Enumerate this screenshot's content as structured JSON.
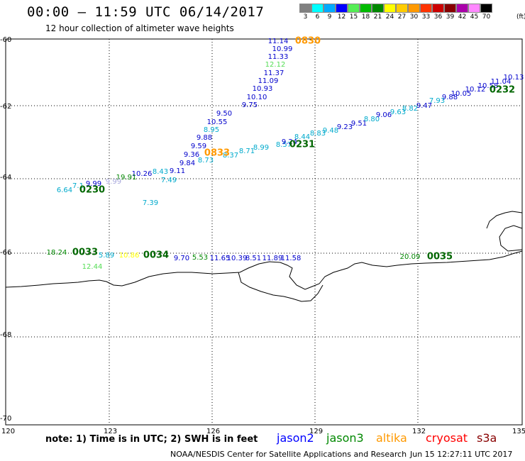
{
  "header": {
    "title": "00:00 – 11:59 UTC 06/14/2017",
    "subtitle": "12 hour collection of altimeter wave heights"
  },
  "scale": {
    "labels": [
      "3",
      "6",
      "9",
      "12",
      "15",
      "18",
      "21",
      "24",
      "27",
      "30",
      "33",
      "36",
      "39",
      "42",
      "45",
      "70"
    ],
    "unit": "(ft)",
    "colors": [
      "#808080",
      "#00ffff",
      "#00aaff",
      "#0000ff",
      "#55ee55",
      "#00bb00",
      "#008800",
      "#ffff00",
      "#ffcc00",
      "#ff9900",
      "#ff3300",
      "#cc0000",
      "#880000",
      "#aa00aa",
      "#ff88ff",
      "#000000"
    ]
  },
  "axes": {
    "lon_ticks": [
      "120",
      "123",
      "126",
      "129",
      "132",
      "135"
    ],
    "lat_ticks": [
      "-60",
      "-62",
      "-64",
      "-66",
      "-68",
      "-70"
    ]
  },
  "passes": [
    {
      "label": "0830",
      "color": "#ff9900"
    },
    {
      "label": "0230",
      "color": "#006600"
    },
    {
      "label": "0231",
      "color": "#006600"
    },
    {
      "label": "0232",
      "color": "#006600"
    },
    {
      "label": "0033",
      "color": "#006600"
    },
    {
      "label": "0034",
      "color": "#006600"
    },
    {
      "label": "0035",
      "color": "#006600"
    },
    {
      "label": "0833",
      "color": "#ff9900"
    }
  ],
  "observations": [
    {
      "v": "11.14",
      "c": "#0000cc"
    },
    {
      "v": "10.99",
      "c": "#0000cc"
    },
    {
      "v": "11.33",
      "c": "#0000cc"
    },
    {
      "v": "12.12",
      "c": "#55dd55"
    },
    {
      "v": "11.37",
      "c": "#0000cc"
    },
    {
      "v": "11.09",
      "c": "#0000cc"
    },
    {
      "v": "10.93",
      "c": "#0000cc"
    },
    {
      "v": "10.10",
      "c": "#0000cc"
    },
    {
      "v": "9.75",
      "c": "#0000cc"
    },
    {
      "v": "9.50",
      "c": "#0000cc"
    },
    {
      "v": "10.55",
      "c": "#0000cc"
    },
    {
      "v": "8.95",
      "c": "#00aacc"
    },
    {
      "v": "9.88",
      "c": "#0000cc"
    },
    {
      "v": "9.59",
      "c": "#0000cc"
    },
    {
      "v": "9.36",
      "c": "#0000cc"
    },
    {
      "v": "9.84",
      "c": "#0000cc"
    },
    {
      "v": "9.11",
      "c": "#0000cc"
    },
    {
      "v": "8.43",
      "c": "#00aacc"
    },
    {
      "v": "7.49",
      "c": "#00aacc"
    },
    {
      "v": "10.26",
      "c": "#0000cc"
    },
    {
      "v": "19.91",
      "c": "#008800"
    },
    {
      "v": "9.99",
      "c": "#0000cc"
    },
    {
      "v": "7.1",
      "c": "#00aacc"
    },
    {
      "v": "6.64",
      "c": "#00aacc"
    },
    {
      "v": "7.39",
      "c": "#00aacc"
    },
    {
      "v": "8.73",
      "c": "#00aacc"
    },
    {
      "v": "8.37",
      "c": "#00aacc"
    },
    {
      "v": "8.71",
      "c": "#00aacc"
    },
    {
      "v": "8.99",
      "c": "#00aacc"
    },
    {
      "v": "8.57",
      "c": "#00aacc"
    },
    {
      "v": "9.24",
      "c": "#0000cc"
    },
    {
      "v": "8.44",
      "c": "#00aacc"
    },
    {
      "v": "8.83",
      "c": "#00aacc"
    },
    {
      "v": "9.48",
      "c": "#00aacc"
    },
    {
      "v": "9.23",
      "c": "#0000cc"
    },
    {
      "v": "9.51",
      "c": "#0000cc"
    },
    {
      "v": "8.80",
      "c": "#00aacc"
    },
    {
      "v": "9.06",
      "c": "#0000cc"
    },
    {
      "v": "9.63",
      "c": "#00aacc"
    },
    {
      "v": "8.82",
      "c": "#00aacc"
    },
    {
      "v": "9.47",
      "c": "#0000cc"
    },
    {
      "v": "7.93",
      "c": "#00aacc"
    },
    {
      "v": "9.88",
      "c": "#0000cc"
    },
    {
      "v": "10.05",
      "c": "#0000cc"
    },
    {
      "v": "10.12",
      "c": "#0000cc"
    },
    {
      "v": "10.58",
      "c": "#0000cc"
    },
    {
      "v": "11.04",
      "c": "#0000cc"
    },
    {
      "v": "10.13",
      "c": "#0000cc"
    },
    {
      "v": "18.24",
      "c": "#008800"
    },
    {
      "v": "12.44",
      "c": "#55dd55"
    },
    {
      "v": "9.70",
      "c": "#0000cc"
    },
    {
      "v": "5.53",
      "c": "#008800"
    },
    {
      "v": "11.65",
      "c": "#0000cc"
    },
    {
      "v": "10.39",
      "c": "#0000cc"
    },
    {
      "v": "8.51",
      "c": "#0000cc"
    },
    {
      "v": "11.89",
      "c": "#0000cc"
    },
    {
      "v": "11.58",
      "c": "#0000cc"
    },
    {
      "v": "20.09",
      "c": "#008800"
    },
    {
      "v": "10.86",
      "c": "#ffff00"
    },
    {
      "v": "5.89",
      "c": "#00aacc"
    },
    {
      "v": "9.99",
      "c": "#aaaadd"
    }
  ],
  "footer": {
    "note": "note: 1) Time is in UTC; 2) SWH is in feet",
    "sources": [
      {
        "name": "jason2",
        "color": "#0000ff"
      },
      {
        "name": "jason3",
        "color": "#008800"
      },
      {
        "name": "altika",
        "color": "#ff9900"
      },
      {
        "name": "cryosat",
        "color": "#ff0000"
      },
      {
        "name": "s3a",
        "color": "#880000"
      }
    ],
    "credit": "NOAA/NESDIS Center for Satellite Applications and Research",
    "timestamp": "Jun 15 12:27:11 UTC 2017"
  }
}
